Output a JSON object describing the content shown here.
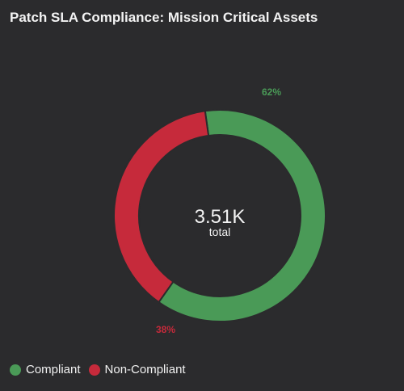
{
  "chart_data": {
    "type": "pie",
    "title": "Patch SLA Compliance: Mission Critical Assets",
    "categories": [
      "Compliant",
      "Non-Compliant"
    ],
    "values": [
      62,
      38
    ],
    "percent_labels": [
      "62%",
      "38%"
    ],
    "colors": [
      "#4a9a57",
      "#c62a3b"
    ],
    "center_value": "3.51K",
    "center_label": "total",
    "legend_position": "bottom-left"
  },
  "legend": {
    "items": [
      {
        "label": "Compliant",
        "color": "#4a9a57"
      },
      {
        "label": "Non-Compliant",
        "color": "#c62a3b"
      }
    ]
  }
}
